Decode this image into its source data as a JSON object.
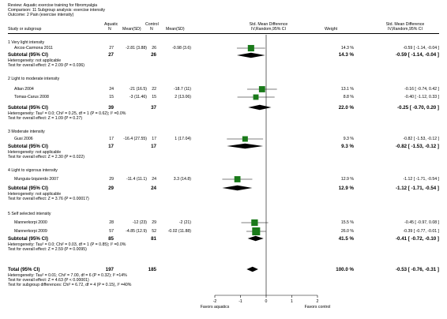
{
  "header": {
    "review": "Review:  Aquatic exercise training for fibromyalgia",
    "comparison": "Comparison:  11 Subgroup analysis: exercise intensity",
    "outcome": "Outcome:  2 Pain (exercise intensity)"
  },
  "columns": {
    "study": "Study or subgroup",
    "aquatic": "Aquatic",
    "control": "Control",
    "n": "N",
    "mean_sd": "Mean(SD)",
    "smd_title": "Std. Mean Difference",
    "smd_method": "IV,Random,95% CI",
    "weight": "Weight"
  },
  "groups": [
    {
      "title": "1 Very light intensity",
      "studies": [
        {
          "name": "Arcos-Carmona 2011",
          "n1": "27",
          "ms1": "-2.81 (3.88)",
          "n2": "26",
          "ms2": "-0.98 (3.6)",
          "weight": "14.3 %",
          "ci": "-0.59 [ -1.14, -0.04 ]"
        }
      ],
      "subtotal": {
        "label": "Subtotal (95% CI)",
        "n1": "27",
        "n2": "26",
        "weight": "14.3 %",
        "ci": "-0.59 [ -1.14, -0.04 ]"
      },
      "notes": [
        "Heterogeneity: not applicable",
        "Test for overall effect: Z = 2.09 (P = 0.036)"
      ]
    },
    {
      "title": "2 Light to moderate intensity",
      "studies": [
        {
          "name": "Altan 2004",
          "n1": "24",
          "ms1": "-21 (16.5)",
          "n2": "22",
          "ms2": "-18.7 (11)",
          "weight": "13.1 %",
          "ci": "-0.16 [ -0.74, 0.42 ]"
        },
        {
          "name": "Tomas-Carus 2008",
          "n1": "15",
          "ms1": "-3 (11.46)",
          "n2": "15",
          "ms2": "2 (13.06)",
          "weight": "8.8 %",
          "ci": "-0.40 [ -1.12, 0.33 ]"
        }
      ],
      "subtotal": {
        "label": "Subtotal (95% CI)",
        "n1": "39",
        "n2": "37",
        "weight": "22.0 %",
        "ci": "-0.25 [ -0.70, 0.20 ]"
      },
      "notes": [
        "Heterogeneity: Tau² = 0.0; Chi² = 0.25, df = 1 (P = 0.62); I² =0.0%",
        "Test for overall effect: Z = 1.09 (P = 0.27)"
      ]
    },
    {
      "title": "3 Moderate intensity",
      "studies": [
        {
          "name": "Gusi 2006",
          "n1": "17",
          "ms1": "-16.4 (27.55)",
          "n2": "17",
          "ms2": "1 (17.04)",
          "weight": "9.3 %",
          "ci": "-0.82 [ -1.53, -0.12 ]"
        }
      ],
      "subtotal": {
        "label": "Subtotal (95% CI)",
        "n1": "17",
        "n2": "17",
        "weight": "9.3 %",
        "ci": "-0.82 [ -1.53, -0.12 ]"
      },
      "notes": [
        "Heterogeneity: not applicable",
        "Test for overall effect: Z = 2.30 (P = 0.022)"
      ]
    },
    {
      "title": "4 Light to vigorous intensity",
      "studies": [
        {
          "name": "Munguia-Izquierdo 2007",
          "n1": "29",
          "ms1": "-11.4 (11.1)",
          "n2": "24",
          "ms2": "3.3 (14.8)",
          "weight": "12.9 %",
          "ci": "-1.12 [ -1.71, -0.54 ]"
        }
      ],
      "subtotal": {
        "label": "Subtotal (95% CI)",
        "n1": "29",
        "n2": "24",
        "weight": "12.9 %",
        "ci": "-1.12 [ -1.71, -0.54 ]"
      },
      "notes": [
        "Heterogeneity: not applicable",
        "Test for overall effect: Z = 3.76 (P = 0.00017)"
      ]
    },
    {
      "title": "5 Self selected intensity",
      "studies": [
        {
          "name": "Mannerkorpi 2000",
          "n1": "28",
          "ms1": "-12 (23)",
          "n2": "29",
          "ms2": "-2 (21)",
          "weight": "15.5 %",
          "ci": "-0.45 [ -0.97, 0.08 ]"
        },
        {
          "name": "Mannerkorpi 2009",
          "n1": "57",
          "ms1": "-4.85 (12.9)",
          "n2": "52",
          "ms2": "-0.02 (11.88)",
          "weight": "26.0 %",
          "ci": "-0.39 [ -0.77, -0.01 ]"
        }
      ],
      "subtotal": {
        "label": "Subtotal (95% CI)",
        "n1": "85",
        "n2": "81",
        "weight": "41.5 %",
        "ci": "-0.41 [ -0.72, -0.10 ]"
      },
      "notes": [
        "Heterogeneity: Tau² = 0.0; Chi² = 0.03, df = 1 (P = 0.85); I² =0.0%",
        "Test for overall effect: Z = 2.59 (P = 0.0095)"
      ]
    }
  ],
  "total": {
    "label": "Total (95% CI)",
    "n1": "197",
    "n2": "185",
    "weight": "100.0 %",
    "ci": "-0.53 [ -0.76, -0.31 ]",
    "notes": [
      "Heterogeneity: Tau² = 0.01; Chi² = 7.00, df = 6 (P = 0.32); I² =14%",
      "Test for overall effect: Z = 4.63 (P < 0.00001)",
      "Test for subgroup differences: Chi² = 6.72, df = 4 (P = 0.15), I² =40%"
    ]
  },
  "footer": {
    "favors_left": "Favors aquatics",
    "favors_right": "Favors control"
  },
  "chart_data": {
    "type": "forest",
    "xlim": [
      -2,
      2
    ],
    "xticks": [
      "-2",
      "-1",
      "0",
      "1",
      "2"
    ],
    "xlabel_left": "Favors aquatics",
    "xlabel_right": "Favors control",
    "studies": [
      {
        "name": "Arcos-Carmona 2011",
        "est": -0.59,
        "lo": -1.14,
        "hi": -0.04,
        "weight": 14.3
      },
      {
        "name": "Altan 2004",
        "est": -0.16,
        "lo": -0.74,
        "hi": 0.42,
        "weight": 13.1
      },
      {
        "name": "Tomas-Carus 2008",
        "est": -0.4,
        "lo": -1.12,
        "hi": 0.33,
        "weight": 8.8
      },
      {
        "name": "Gusi 2006",
        "est": -0.82,
        "lo": -1.53,
        "hi": -0.12,
        "weight": 9.3
      },
      {
        "name": "Munguia-Izquierdo 2007",
        "est": -1.12,
        "lo": -1.71,
        "hi": -0.54,
        "weight": 12.9
      },
      {
        "name": "Mannerkorpi 2000",
        "est": -0.45,
        "lo": -0.97,
        "hi": 0.08,
        "weight": 15.5
      },
      {
        "name": "Mannerkorpi 2009",
        "est": -0.39,
        "lo": -0.77,
        "hi": -0.01,
        "weight": 26.0
      }
    ],
    "subtotals": [
      {
        "group": "1 Very light intensity",
        "est": -0.59,
        "lo": -1.14,
        "hi": -0.04
      },
      {
        "group": "2 Light to moderate intensity",
        "est": -0.25,
        "lo": -0.7,
        "hi": 0.2
      },
      {
        "group": "3 Moderate intensity",
        "est": -0.82,
        "lo": -1.53,
        "hi": -0.12
      },
      {
        "group": "4 Light to vigorous intensity",
        "est": -1.12,
        "lo": -1.71,
        "hi": -0.54
      },
      {
        "group": "5 Self selected intensity",
        "est": -0.41,
        "lo": -0.72,
        "hi": -0.1
      }
    ],
    "total": {
      "est": -0.53,
      "lo": -0.76,
      "hi": -0.31
    },
    "colors": {
      "square": "#1a7a1a",
      "diamond": "#000000"
    }
  }
}
